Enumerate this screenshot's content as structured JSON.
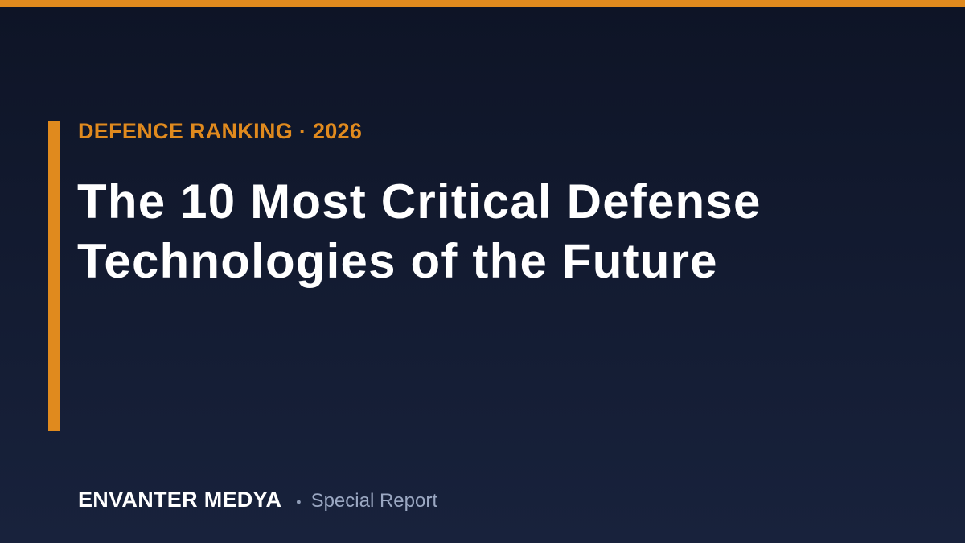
{
  "header": {
    "kicker": "DEFENCE RANKING · 2026",
    "title_lines": [
      "The 10 Most Critical Defense",
      "Technologies of the Future"
    ]
  },
  "footer": {
    "brand": "ENVANTER MEDYA",
    "separator": "•",
    "label": "Special Report"
  }
}
